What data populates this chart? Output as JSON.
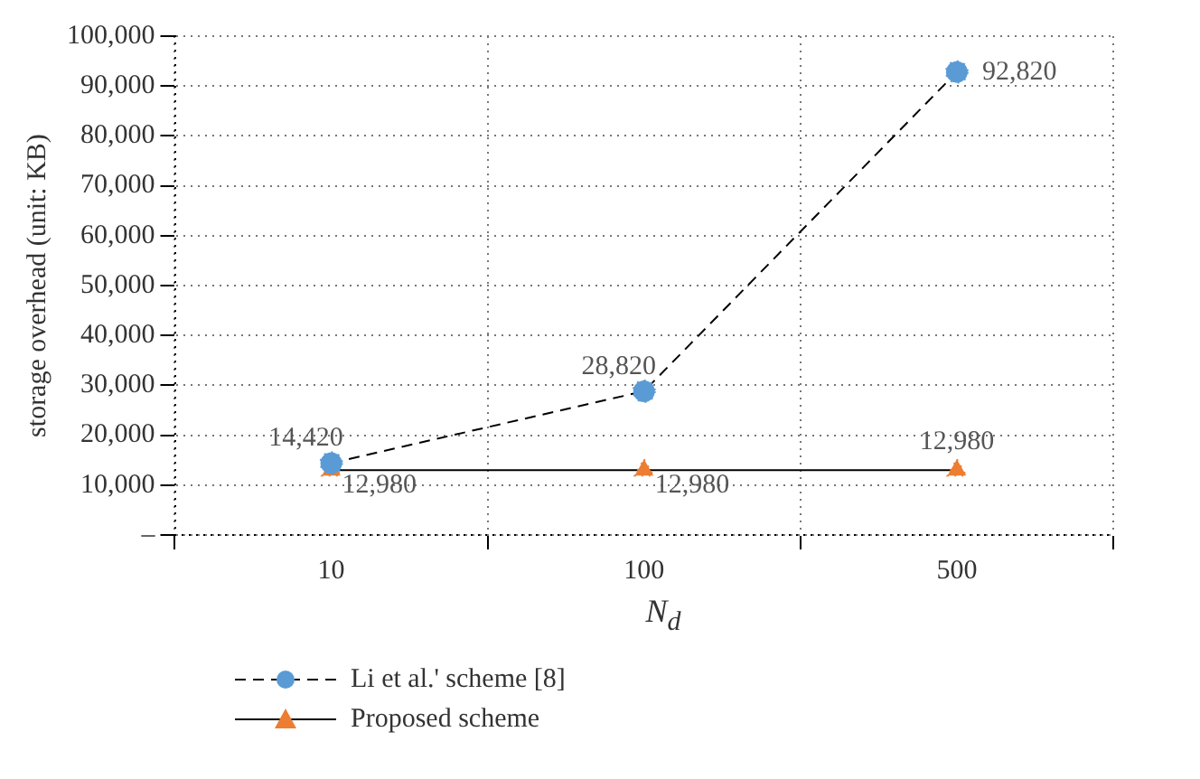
{
  "chart_data": {
    "type": "line",
    "xlabel": "N$_{d}$",
    "ylabel": "storage overhead (unit: KB)",
    "categories": [
      "10",
      "100",
      "500"
    ],
    "series": [
      {
        "name": "Li et al.' scheme [8]",
        "color": "#5b9bd5",
        "values": [
          14420,
          28820,
          92820
        ],
        "value_labels": [
          "14,420",
          "28,820",
          "92,820"
        ],
        "marker": "circle",
        "line_style": "dashed"
      },
      {
        "name": "Proposed scheme",
        "color": "#ed7d31",
        "values": [
          12980,
          12980,
          12980
        ],
        "value_labels": [
          "12,980",
          "12,980",
          "12,980"
        ],
        "marker": "triangle",
        "line_style": "solid"
      }
    ],
    "ylim": [
      0,
      100000
    ],
    "yticks": [
      {
        "value": 0,
        "label": "–"
      },
      {
        "value": 10000,
        "label": "10,000"
      },
      {
        "value": 20000,
        "label": "20,000"
      },
      {
        "value": 30000,
        "label": "30,000"
      },
      {
        "value": 40000,
        "label": "40,000"
      },
      {
        "value": 50000,
        "label": "50,000"
      },
      {
        "value": 60000,
        "label": "60,000"
      },
      {
        "value": 70000,
        "label": "70,000"
      },
      {
        "value": 80000,
        "label": "80,000"
      },
      {
        "value": 90000,
        "label": "90,000"
      },
      {
        "value": 100000,
        "label": "100,000"
      }
    ],
    "grid": true,
    "legend": "bottom left"
  }
}
